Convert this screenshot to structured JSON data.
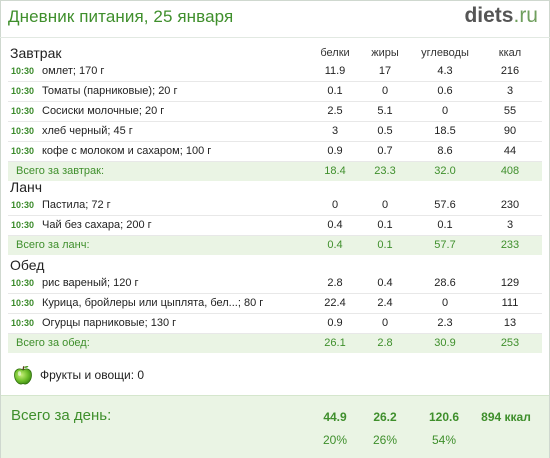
{
  "header": {
    "title": "Дневник питания, 25 января",
    "logo_brand": "diets",
    "logo_tld": ".ru"
  },
  "columns": {
    "protein": "белки",
    "fat": "жиры",
    "carbs": "углеводы",
    "kcal": "ккал"
  },
  "sections": [
    {
      "title": "Завтрак",
      "items": [
        {
          "time": "10:30",
          "name": "омлет; 170 г",
          "protein": "11.9",
          "fat": "17",
          "carbs": "4.3",
          "kcal": "216"
        },
        {
          "time": "10:30",
          "name": "Томаты (парниковые); 20 г",
          "protein": "0.1",
          "fat": "0",
          "carbs": "0.6",
          "kcal": "3"
        },
        {
          "time": "10:30",
          "name": "Сосиски молочные; 20 г",
          "protein": "2.5",
          "fat": "5.1",
          "carbs": "0",
          "kcal": "55"
        },
        {
          "time": "10:30",
          "name": "хлеб черный; 45 г",
          "protein": "3",
          "fat": "0.5",
          "carbs": "18.5",
          "kcal": "90"
        },
        {
          "time": "10:30",
          "name": "кофе с молоком и сахаром; 100 г",
          "protein": "0.9",
          "fat": "0.7",
          "carbs": "8.6",
          "kcal": "44"
        }
      ],
      "total": {
        "label": "Всего за завтрак:",
        "protein": "18.4",
        "fat": "23.3",
        "carbs": "32.0",
        "kcal": "408"
      }
    },
    {
      "title": "Ланч",
      "items": [
        {
          "time": "10:30",
          "name": "Пастила; 72 г",
          "protein": "0",
          "fat": "0",
          "carbs": "57.6",
          "kcal": "230"
        },
        {
          "time": "10:30",
          "name": "Чай без сахара; 200 г",
          "protein": "0.4",
          "fat": "0.1",
          "carbs": "0.1",
          "kcal": "3"
        }
      ],
      "total": {
        "label": "Всего за ланч:",
        "protein": "0.4",
        "fat": "0.1",
        "carbs": "57.7",
        "kcal": "233"
      }
    },
    {
      "title": "Обед",
      "items": [
        {
          "time": "10:30",
          "name": "рис вареный; 120 г",
          "protein": "2.8",
          "fat": "0.4",
          "carbs": "28.6",
          "kcal": "129"
        },
        {
          "time": "10:30",
          "name": "Курица, бройлеры или цыплята, бел...; 80 г",
          "protein": "22.4",
          "fat": "2.4",
          "carbs": "0",
          "kcal": "111"
        },
        {
          "time": "10:30",
          "name": "Огурцы парниковые; 130 г",
          "protein": "0.9",
          "fat": "0",
          "carbs": "2.3",
          "kcal": "13"
        }
      ],
      "total": {
        "label": "Всего за обед:",
        "protein": "26.1",
        "fat": "2.8",
        "carbs": "30.9",
        "kcal": "253"
      }
    }
  ],
  "fruits": {
    "icon": "apple-icon",
    "text": "Фрукты и овощи: 0"
  },
  "day_total": {
    "label": "Всего за день:",
    "protein": "44.9",
    "fat": "26.2",
    "carbs": "120.6",
    "kcal": "894 ккал",
    "protein_pct": "20%",
    "fat_pct": "26%",
    "carbs_pct": "54%"
  },
  "colors": {
    "accent_green": "#3f8f2c",
    "total_bg": "#eaf4e4",
    "time_green": "#3a8a2a"
  }
}
